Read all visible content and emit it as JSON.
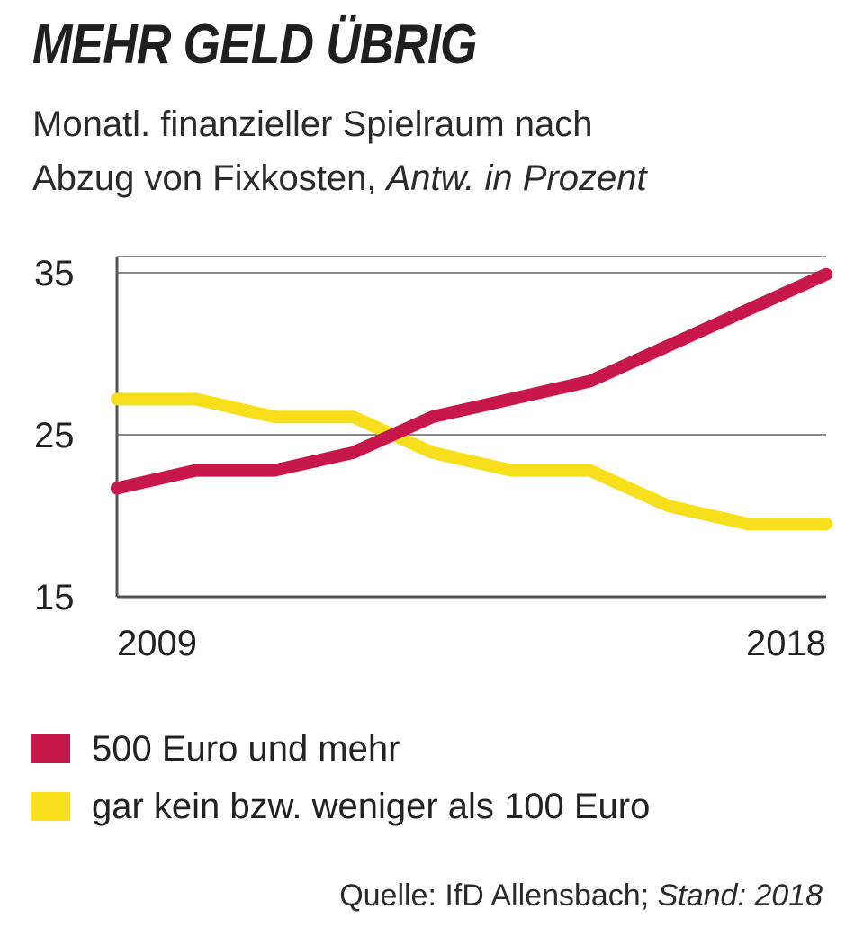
{
  "title": "MEHR GELD ÜBRIG",
  "subtitle": {
    "line1": "Monatl. finanzieller Spielraum nach",
    "line2_plain": "Abzug von Fixkosten, ",
    "line2_italic": "Antw. in Prozent"
  },
  "source": {
    "plain": "Quelle: IfD Allensbach; ",
    "italic": "Stand: 2018"
  },
  "colors": {
    "red": "#c8174a",
    "yellow": "#f7df1c",
    "axis": "#555555"
  },
  "chart_data": {
    "type": "line",
    "title": "MEHR GELD ÜBRIG",
    "subtitle": "Monatl. finanzieller Spielraum nach Abzug von Fixkosten, Antw. in Prozent",
    "x": [
      2009,
      2010,
      2011,
      2012,
      2013,
      2014,
      2015,
      2016,
      2017,
      2018
    ],
    "xticks": [
      "2009",
      "2018"
    ],
    "yticks": [
      35,
      25,
      15
    ],
    "ylim": [
      15,
      36
    ],
    "xlabel": "",
    "ylabel": "",
    "grid": true,
    "series": [
      {
        "name": "500 Euro und mehr",
        "color": "#c8174a",
        "values": [
          21.7,
          22.8,
          22.8,
          23.9,
          26.1,
          27.2,
          28.3,
          30.5,
          32.7,
          34.9
        ]
      },
      {
        "name": "gar kein bzw. weniger als 100 Euro",
        "color": "#f7df1c",
        "values": [
          27.2,
          27.2,
          26.1,
          26.1,
          23.9,
          22.8,
          22.8,
          20.6,
          19.5,
          19.5
        ]
      }
    ]
  }
}
